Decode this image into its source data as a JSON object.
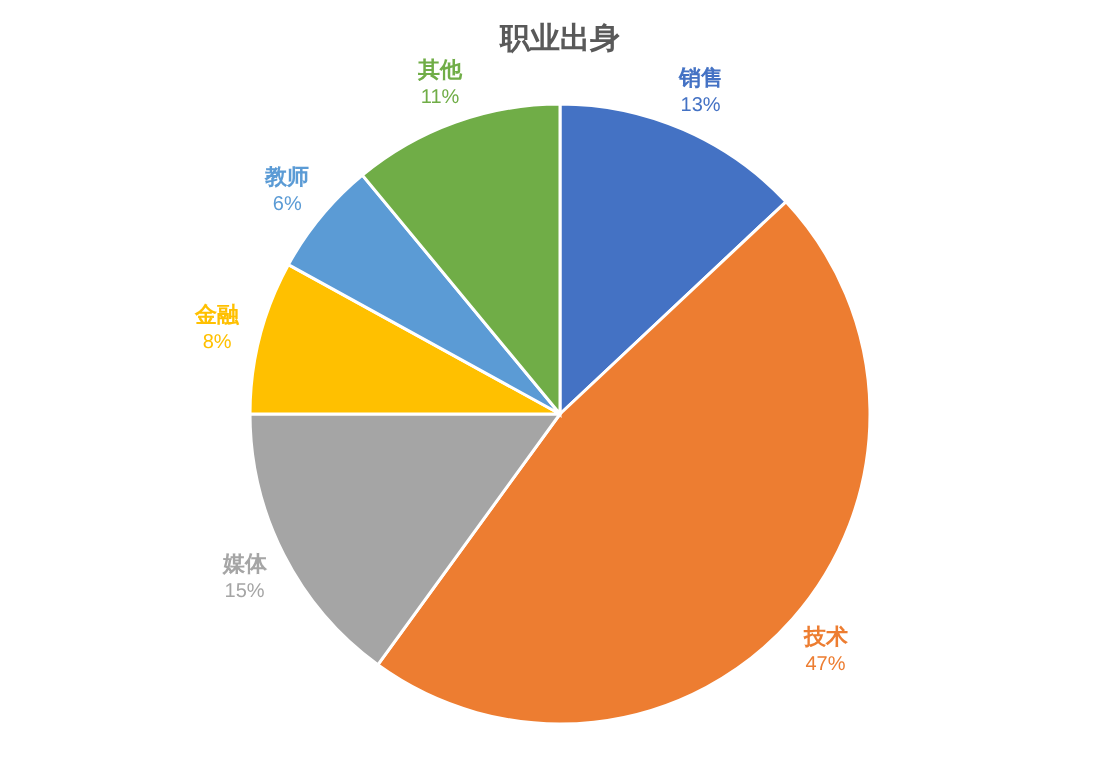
{
  "chart_data": {
    "type": "pie",
    "title": "职业出身",
    "categories": [
      "销售",
      "技术",
      "媒体",
      "金融",
      "教师",
      "其他"
    ],
    "values": [
      13,
      47,
      15,
      8,
      6,
      11
    ],
    "colors": [
      "#4472c4",
      "#ed7d31",
      "#a5a5a5",
      "#ffc000",
      "#5b9bd5",
      "#70ad47"
    ],
    "value_labels": [
      "13%",
      "47%",
      "15%",
      "8%",
      "6%",
      "11%"
    ]
  }
}
